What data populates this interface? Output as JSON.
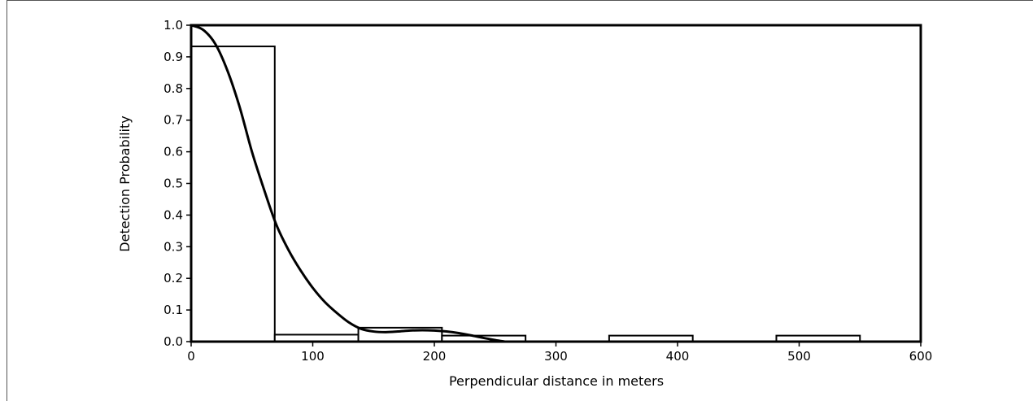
{
  "chart_data": {
    "type": "bar",
    "title": "",
    "xlabel": "Perpendicular distance in meters",
    "ylabel": "Detection Probability",
    "xlim": [
      0,
      600
    ],
    "ylim": [
      0,
      1.0
    ],
    "x_ticks": [
      "0",
      "100",
      "200",
      "300",
      "400",
      "500",
      "600"
    ],
    "y_ticks": [
      "0.0",
      "0.1",
      "0.2",
      "0.3",
      "0.4",
      "0.5",
      "0.6",
      "0.7",
      "0.8",
      "0.9",
      "1.0"
    ],
    "grid": false,
    "legend": "none",
    "histogram_bins": [
      {
        "start": 0,
        "end": 68.75,
        "value": 0.933
      },
      {
        "start": 68.75,
        "end": 137.5,
        "value": 0.022
      },
      {
        "start": 137.5,
        "end": 206.25,
        "value": 0.044
      },
      {
        "start": 206.25,
        "end": 275,
        "value": 0.019
      },
      {
        "start": 343.75,
        "end": 412.5,
        "value": 0.019
      },
      {
        "start": 481.25,
        "end": 550,
        "value": 0.019
      }
    ],
    "curve": {
      "x": [
        0,
        10,
        20,
        30,
        40,
        50,
        60,
        70,
        80,
        90,
        100,
        110,
        120,
        130,
        140,
        150,
        160,
        170,
        180,
        190,
        200,
        210,
        220,
        230,
        240,
        250,
        258
      ],
      "y": [
        1.0,
        0.985,
        0.94,
        0.855,
        0.74,
        0.6,
        0.48,
        0.37,
        0.29,
        0.225,
        0.17,
        0.125,
        0.09,
        0.06,
        0.04,
        0.032,
        0.03,
        0.032,
        0.035,
        0.036,
        0.035,
        0.032,
        0.027,
        0.02,
        0.012,
        0.005,
        0.0
      ]
    }
  }
}
